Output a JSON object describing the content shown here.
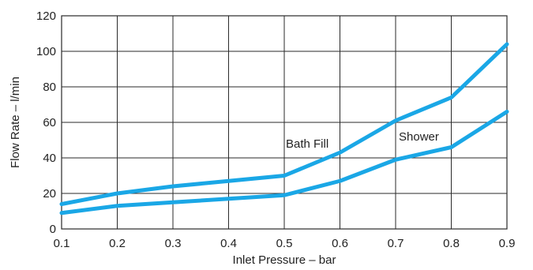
{
  "chart_data": {
    "type": "line",
    "xlabel": "Inlet Pressure – bar",
    "ylabel": "Flow Rate – l/min",
    "xlim": [
      0.1,
      0.9
    ],
    "ylim": [
      0,
      120
    ],
    "x_ticks": [
      "0.1",
      "0.2",
      "0.3",
      "0.4",
      "0.5",
      "0.6",
      "0.7",
      "0.8",
      "0.9"
    ],
    "y_ticks": [
      "0",
      "20",
      "40",
      "60",
      "80",
      "100",
      "120"
    ],
    "grid": true,
    "line_color": "#1aa7e6",
    "series": [
      {
        "name": "Bath Fill",
        "x": [
          0.1,
          0.2,
          0.3,
          0.4,
          0.5,
          0.6,
          0.7,
          0.8,
          0.9
        ],
        "values": [
          14,
          20,
          24,
          27,
          30,
          43,
          61,
          74,
          104
        ]
      },
      {
        "name": "Shower",
        "x": [
          0.1,
          0.2,
          0.3,
          0.4,
          0.5,
          0.6,
          0.7,
          0.8,
          0.9
        ],
        "values": [
          9,
          13,
          15,
          17,
          19,
          27,
          39,
          46,
          66
        ]
      }
    ]
  }
}
